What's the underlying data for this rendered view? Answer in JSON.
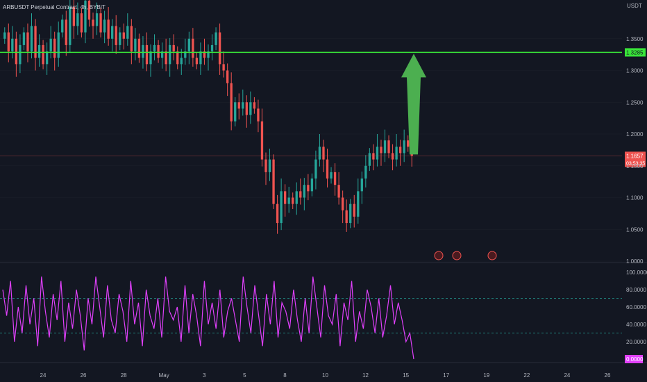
{
  "header": {
    "symbol_title": "ARBUSDT Perpetual Contract, 4h, BYBIT",
    "currency": "USDT"
  },
  "colors": {
    "background": "#131722",
    "bull": "#26a69a",
    "bear": "#ef5350",
    "resistance_line": "#39e639",
    "arrow": "#4caf50",
    "rsi_line": "#e040fb",
    "grid": "#2a2e39",
    "axis_text": "#b2b5be"
  },
  "chart_data": [
    {
      "type": "candlestick",
      "pane": "price",
      "y_ticks": [
        "1.3500",
        "1.3000",
        "1.2500",
        "1.2000",
        "1.1500",
        "1.1000",
        "1.0500",
        "1.0000"
      ],
      "ylim": [
        1.0,
        1.4
      ],
      "x_ticks": [
        "24",
        "26",
        "28",
        "May",
        "3",
        "5",
        "8",
        "10",
        "12",
        "15",
        "17",
        "19",
        "22",
        "24",
        "26"
      ],
      "horizontal_line": {
        "value": 1.3285,
        "label": "1.3285"
      },
      "last_price": {
        "value": 1.1657,
        "label": "1.1657",
        "countdown": "03:53:35"
      },
      "annotation": "up-arrow",
      "events_count": 3,
      "closes": [
        1.36,
        1.33,
        1.35,
        1.31,
        1.34,
        1.36,
        1.33,
        1.37,
        1.32,
        1.34,
        1.31,
        1.33,
        1.35,
        1.32,
        1.36,
        1.38,
        1.34,
        1.4,
        1.37,
        1.39,
        1.36,
        1.41,
        1.38,
        1.37,
        1.39,
        1.36,
        1.38,
        1.35,
        1.37,
        1.34,
        1.36,
        1.35,
        1.37,
        1.33,
        1.35,
        1.32,
        1.34,
        1.31,
        1.33,
        1.34,
        1.32,
        1.33,
        1.31,
        1.34,
        1.33,
        1.31,
        1.32,
        1.33,
        1.35,
        1.32,
        1.31,
        1.33,
        1.32,
        1.33,
        1.34,
        1.36,
        1.31,
        1.3,
        1.28,
        1.22,
        1.25,
        1.24,
        1.25,
        1.23,
        1.25,
        1.24,
        1.22,
        1.16,
        1.14,
        1.16,
        1.09,
        1.06,
        1.11,
        1.09,
        1.1,
        1.09,
        1.11,
        1.1,
        1.12,
        1.11,
        1.13,
        1.16,
        1.18,
        1.16,
        1.13,
        1.14,
        1.12,
        1.1,
        1.08,
        1.06,
        1.09,
        1.07,
        1.11,
        1.13,
        1.15,
        1.17,
        1.16,
        1.18,
        1.17,
        1.19,
        1.17,
        1.16,
        1.18,
        1.17,
        1.19,
        1.18,
        1.1657
      ]
    },
    {
      "type": "line",
      "pane": "oscillator",
      "y_ticks": [
        "100.0000",
        "80.0000",
        "60.0000",
        "40.0000",
        "20.0000"
      ],
      "ylim": [
        0,
        100
      ],
      "levels": [
        70,
        30
      ],
      "last_value": {
        "value": 0,
        "label": "0.0000"
      },
      "values": [
        80,
        50,
        90,
        20,
        60,
        30,
        85,
        40,
        70,
        15,
        95,
        55,
        25,
        75,
        45,
        90,
        20,
        65,
        35,
        80,
        50,
        10,
        70,
        40,
        95,
        60,
        25,
        85,
        45,
        30,
        75,
        55,
        20,
        90,
        40,
        65,
        15,
        80,
        50,
        35,
        70,
        25,
        95,
        55,
        45,
        60,
        20,
        85,
        30,
        75,
        50,
        15,
        90,
        40,
        65,
        35,
        80,
        25,
        55,
        70,
        45,
        20,
        95,
        60,
        30,
        85,
        50,
        15,
        75,
        40,
        90,
        25,
        65,
        55,
        35,
        80,
        45,
        20,
        70,
        30,
        95,
        60,
        25,
        85,
        50,
        40,
        75,
        15,
        65,
        45,
        90,
        20,
        55,
        35,
        80,
        60,
        30,
        70,
        25,
        50,
        85,
        40,
        65,
        45,
        20,
        30,
        0
      ]
    }
  ]
}
